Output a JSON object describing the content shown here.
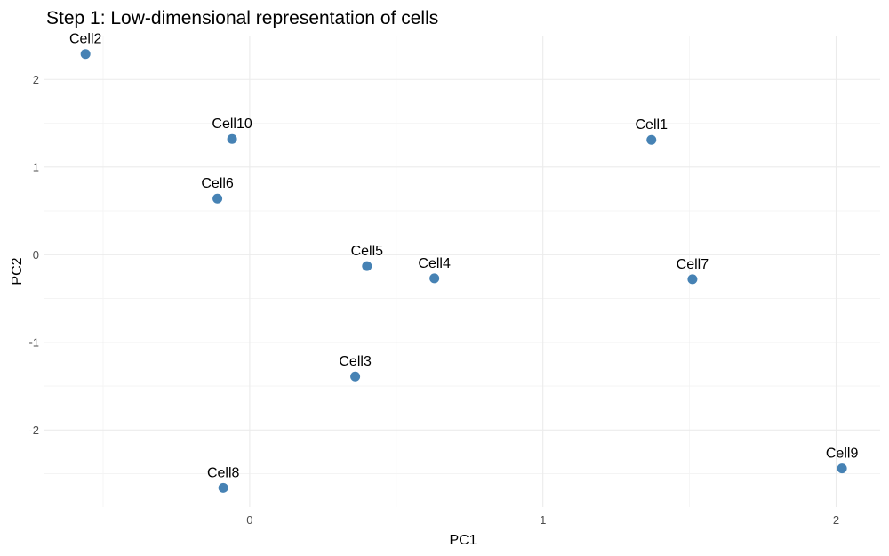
{
  "chart_data": {
    "type": "scatter",
    "title": "Step 1: Low-dimensional representation of cells",
    "xlabel": "PC1",
    "ylabel": "PC2",
    "xlim": [
      -0.7,
      2.15
    ],
    "ylim": [
      -2.88,
      2.5
    ],
    "x_ticks": [
      0,
      1,
      2
    ],
    "y_ticks": [
      -2,
      -1,
      0,
      1,
      2
    ],
    "x_tick_labels": [
      "0",
      "1",
      "2"
    ],
    "y_tick_labels": [
      "-2",
      "-1",
      "0",
      "1",
      "2"
    ],
    "grid": true,
    "point_color": "#4682B4",
    "points": [
      {
        "label": "Cell1",
        "x": 1.37,
        "y": 1.31
      },
      {
        "label": "Cell2",
        "x": -0.56,
        "y": 2.29
      },
      {
        "label": "Cell3",
        "x": 0.36,
        "y": -1.39
      },
      {
        "label": "Cell4",
        "x": 0.63,
        "y": -0.27
      },
      {
        "label": "Cell5",
        "x": 0.4,
        "y": -0.13
      },
      {
        "label": "Cell6",
        "x": -0.11,
        "y": 0.64
      },
      {
        "label": "Cell7",
        "x": 1.51,
        "y": -0.28
      },
      {
        "label": "Cell8",
        "x": -0.09,
        "y": -2.66
      },
      {
        "label": "Cell9",
        "x": 2.02,
        "y": -2.44
      },
      {
        "label": "Cell10",
        "x": -0.06,
        "y": 1.32
      }
    ]
  }
}
